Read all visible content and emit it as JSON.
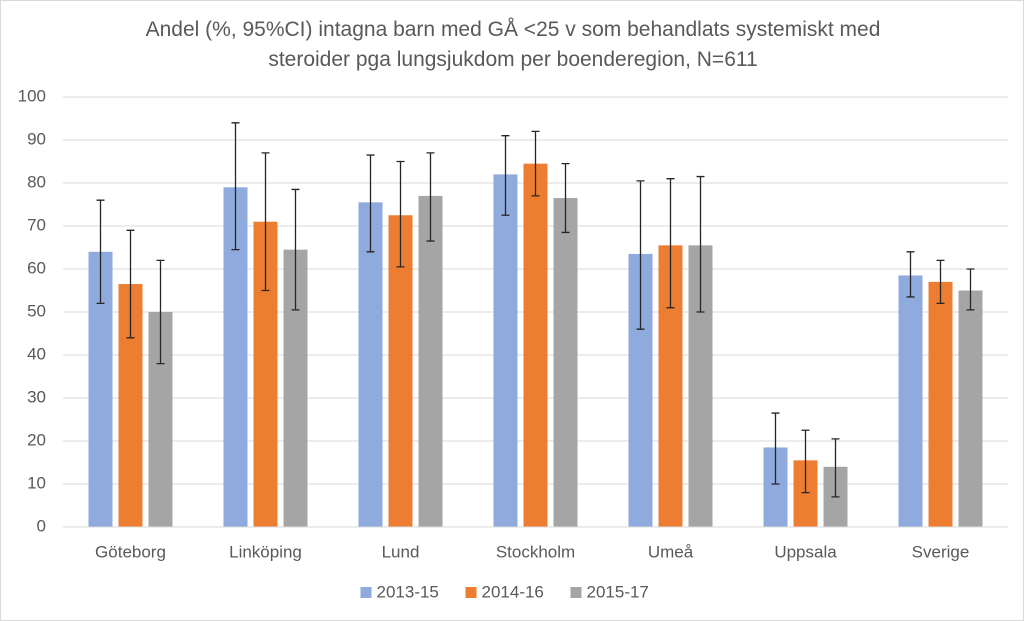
{
  "chart_data": {
    "type": "bar",
    "title": "Andel (%, 95%CI) intagna barn med GÅ <25 v som behandlats systemiskt med steroider pga lungsjukdom per boenderegion, N=611",
    "categories": [
      "Göteborg",
      "Linköping",
      "Lund",
      "Stockholm",
      "Umeå",
      "Uppsala",
      "Sverige"
    ],
    "series": [
      {
        "name": "2013-15",
        "color": "#8faadc",
        "values": [
          64,
          79,
          75.5,
          82,
          63.5,
          18.5,
          58.5
        ],
        "lower": [
          52,
          64.5,
          64,
          72.5,
          46,
          10,
          53.5
        ],
        "upper": [
          76,
          94,
          86.5,
          91,
          80.5,
          26.5,
          64
        ]
      },
      {
        "name": "2014-16",
        "color": "#ed7d31",
        "values": [
          56.5,
          71,
          72.5,
          84.5,
          65.5,
          15.5,
          57
        ],
        "lower": [
          44,
          55,
          60.5,
          77,
          51,
          8,
          52
        ],
        "upper": [
          69,
          87,
          85,
          92,
          81,
          22.5,
          62
        ]
      },
      {
        "name": "2015-17",
        "color": "#a5a5a5",
        "values": [
          50,
          64.5,
          77,
          76.5,
          65.5,
          14,
          55
        ],
        "lower": [
          38,
          50.5,
          66.5,
          68.5,
          50,
          7,
          50.5
        ],
        "upper": [
          62,
          78.5,
          87,
          84.5,
          81.5,
          20.5,
          60
        ]
      }
    ],
    "ylim": [
      0,
      100
    ],
    "yticks": [
      0,
      10,
      20,
      30,
      40,
      50,
      60,
      70,
      80,
      90,
      100
    ],
    "grid": true,
    "legend": "bottom"
  }
}
